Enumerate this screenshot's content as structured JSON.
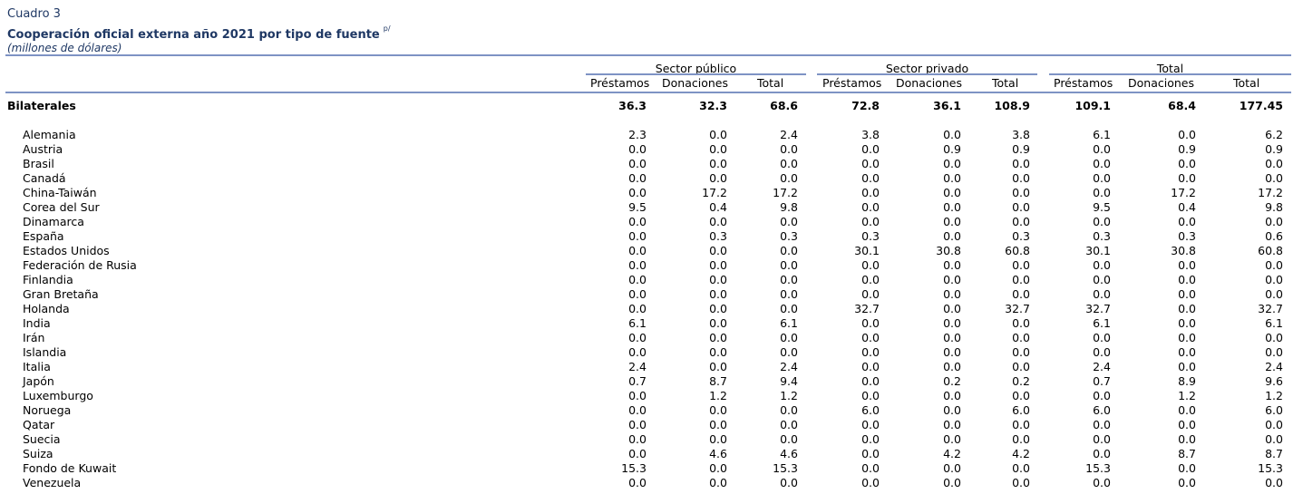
{
  "header": {
    "table_number": "Cuadro 3",
    "title": "Cooperación oficial externa año 2021 por tipo de fuente",
    "title_note": "p/",
    "units": "(millones de dólares)"
  },
  "groups": [
    "Sector público",
    "Sector privado",
    "Total"
  ],
  "columns": [
    "Préstamos",
    "Donaciones",
    "Total",
    "Préstamos",
    "Donaciones",
    "Total",
    "Préstamos",
    "Donaciones",
    "Total"
  ],
  "summary": {
    "label": "Bilaterales",
    "values": [
      "36.3",
      "32.3",
      "68.6",
      "72.8",
      "36.1",
      "108.9",
      "109.1",
      "68.4",
      "177.45"
    ]
  },
  "rows": [
    {
      "label": "Alemania",
      "values": [
        "2.3",
        "0.0",
        "2.4",
        "3.8",
        "0.0",
        "3.8",
        "6.1",
        "0.0",
        "6.2"
      ]
    },
    {
      "label": "Austria",
      "values": [
        "0.0",
        "0.0",
        "0.0",
        "0.0",
        "0.9",
        "0.9",
        "0.0",
        "0.9",
        "0.9"
      ]
    },
    {
      "label": "Brasil",
      "values": [
        "0.0",
        "0.0",
        "0.0",
        "0.0",
        "0.0",
        "0.0",
        "0.0",
        "0.0",
        "0.0"
      ]
    },
    {
      "label": "Canadá",
      "values": [
        "0.0",
        "0.0",
        "0.0",
        "0.0",
        "0.0",
        "0.0",
        "0.0",
        "0.0",
        "0.0"
      ]
    },
    {
      "label": "China-Taiwán",
      "values": [
        "0.0",
        "17.2",
        "17.2",
        "0.0",
        "0.0",
        "0.0",
        "0.0",
        "17.2",
        "17.2"
      ]
    },
    {
      "label": "Corea del Sur",
      "values": [
        "9.5",
        "0.4",
        "9.8",
        "0.0",
        "0.0",
        "0.0",
        "9.5",
        "0.4",
        "9.8"
      ]
    },
    {
      "label": "Dinamarca",
      "values": [
        "0.0",
        "0.0",
        "0.0",
        "0.0",
        "0.0",
        "0.0",
        "0.0",
        "0.0",
        "0.0"
      ]
    },
    {
      "label": "España",
      "values": [
        "0.0",
        "0.3",
        "0.3",
        "0.3",
        "0.0",
        "0.3",
        "0.3",
        "0.3",
        "0.6"
      ]
    },
    {
      "label": "Estados Unidos",
      "values": [
        "0.0",
        "0.0",
        "0.0",
        "30.1",
        "30.8",
        "60.8",
        "30.1",
        "30.8",
        "60.8"
      ]
    },
    {
      "label": "Federación de Rusia",
      "values": [
        "0.0",
        "0.0",
        "0.0",
        "0.0",
        "0.0",
        "0.0",
        "0.0",
        "0.0",
        "0.0"
      ]
    },
    {
      "label": "Finlandia",
      "values": [
        "0.0",
        "0.0",
        "0.0",
        "0.0",
        "0.0",
        "0.0",
        "0.0",
        "0.0",
        "0.0"
      ]
    },
    {
      "label": "Gran Bretaña",
      "values": [
        "0.0",
        "0.0",
        "0.0",
        "0.0",
        "0.0",
        "0.0",
        "0.0",
        "0.0",
        "0.0"
      ]
    },
    {
      "label": "Holanda",
      "values": [
        "0.0",
        "0.0",
        "0.0",
        "32.7",
        "0.0",
        "32.7",
        "32.7",
        "0.0",
        "32.7"
      ]
    },
    {
      "label": "India",
      "values": [
        "6.1",
        "0.0",
        "6.1",
        "0.0",
        "0.0",
        "0.0",
        "6.1",
        "0.0",
        "6.1"
      ]
    },
    {
      "label": "Irán",
      "values": [
        "0.0",
        "0.0",
        "0.0",
        "0.0",
        "0.0",
        "0.0",
        "0.0",
        "0.0",
        "0.0"
      ]
    },
    {
      "label": "Islandia",
      "values": [
        "0.0",
        "0.0",
        "0.0",
        "0.0",
        "0.0",
        "0.0",
        "0.0",
        "0.0",
        "0.0"
      ]
    },
    {
      "label": "Italia",
      "values": [
        "2.4",
        "0.0",
        "2.4",
        "0.0",
        "0.0",
        "0.0",
        "2.4",
        "0.0",
        "2.4"
      ]
    },
    {
      "label": "Japón",
      "values": [
        "0.7",
        "8.7",
        "9.4",
        "0.0",
        "0.2",
        "0.2",
        "0.7",
        "8.9",
        "9.6"
      ]
    },
    {
      "label": "Luxemburgo",
      "values": [
        "0.0",
        "1.2",
        "1.2",
        "0.0",
        "0.0",
        "0.0",
        "0.0",
        "1.2",
        "1.2"
      ]
    },
    {
      "label": "Noruega",
      "values": [
        "0.0",
        "0.0",
        "0.0",
        "6.0",
        "0.0",
        "6.0",
        "6.0",
        "0.0",
        "6.0"
      ]
    },
    {
      "label": "Qatar",
      "values": [
        "0.0",
        "0.0",
        "0.0",
        "0.0",
        "0.0",
        "0.0",
        "0.0",
        "0.0",
        "0.0"
      ]
    },
    {
      "label": "Suecia",
      "values": [
        "0.0",
        "0.0",
        "0.0",
        "0.0",
        "0.0",
        "0.0",
        "0.0",
        "0.0",
        "0.0"
      ]
    },
    {
      "label": "Suiza",
      "values": [
        "0.0",
        "4.6",
        "4.6",
        "0.0",
        "4.2",
        "4.2",
        "0.0",
        "8.7",
        "8.7"
      ]
    },
    {
      "label": "Fondo de Kuwait",
      "values": [
        "15.3",
        "0.0",
        "15.3",
        "0.0",
        "0.0",
        "0.0",
        "15.3",
        "0.0",
        "15.3"
      ]
    },
    {
      "label": "Venezuela",
      "values": [
        "0.0",
        "0.0",
        "0.0",
        "0.0",
        "0.0",
        "0.0",
        "0.0",
        "0.0",
        "0.0"
      ]
    }
  ]
}
